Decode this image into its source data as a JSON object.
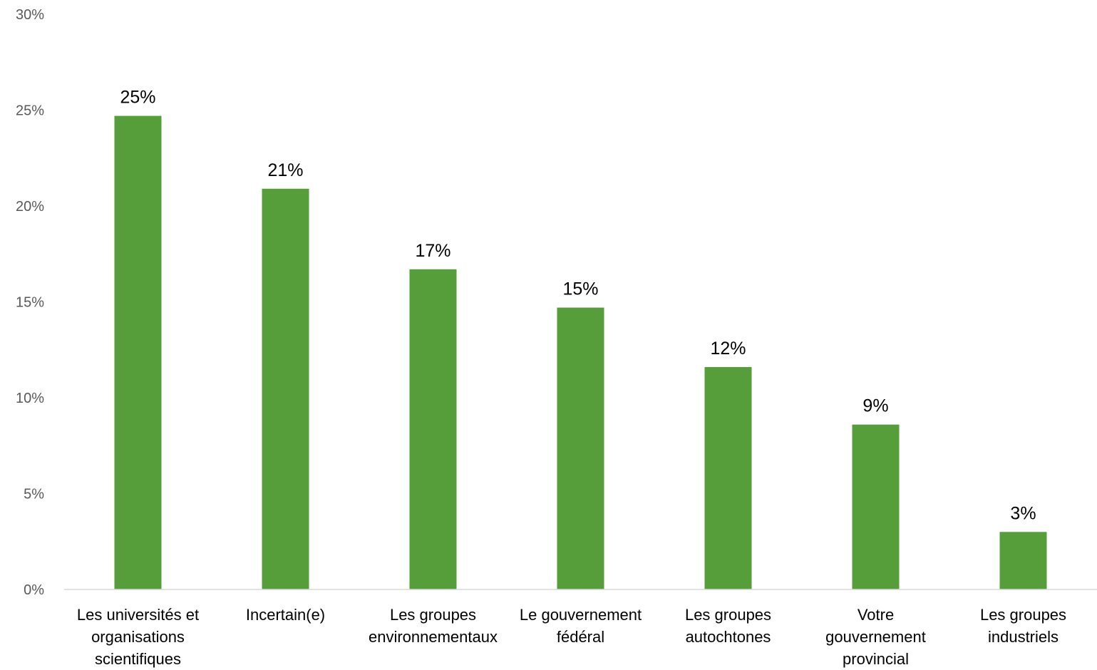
{
  "chart_data": {
    "type": "bar",
    "title": "",
    "xlabel": "",
    "ylabel": "",
    "categories": [
      [
        "Les universités et",
        "organisations",
        "scientifiques"
      ],
      [
        "Incertain(e)"
      ],
      [
        "Les groupes",
        "environnementaux"
      ],
      [
        "Le gouvernement",
        "fédéral"
      ],
      [
        "Les groupes",
        "autochtones"
      ],
      [
        "Votre",
        "gouvernement",
        "provincial"
      ],
      [
        "Les groupes",
        "industriels"
      ]
    ],
    "values": [
      24.7,
      20.9,
      16.7,
      14.7,
      11.6,
      8.6,
      3.0
    ],
    "data_labels": [
      "25%",
      "21%",
      "17%",
      "15%",
      "12%",
      "9%",
      "3%"
    ],
    "ylim": [
      0,
      30
    ],
    "yticks": [
      0,
      5,
      10,
      15,
      20,
      25,
      30
    ],
    "ytick_labels": [
      "0%",
      "5%",
      "10%",
      "15%",
      "20%",
      "25%",
      "30%"
    ],
    "grid": false,
    "legend": "none",
    "colors": {
      "bar": "#559E3A",
      "axis": "#D9D9D9",
      "tick_text": "#595959"
    }
  }
}
